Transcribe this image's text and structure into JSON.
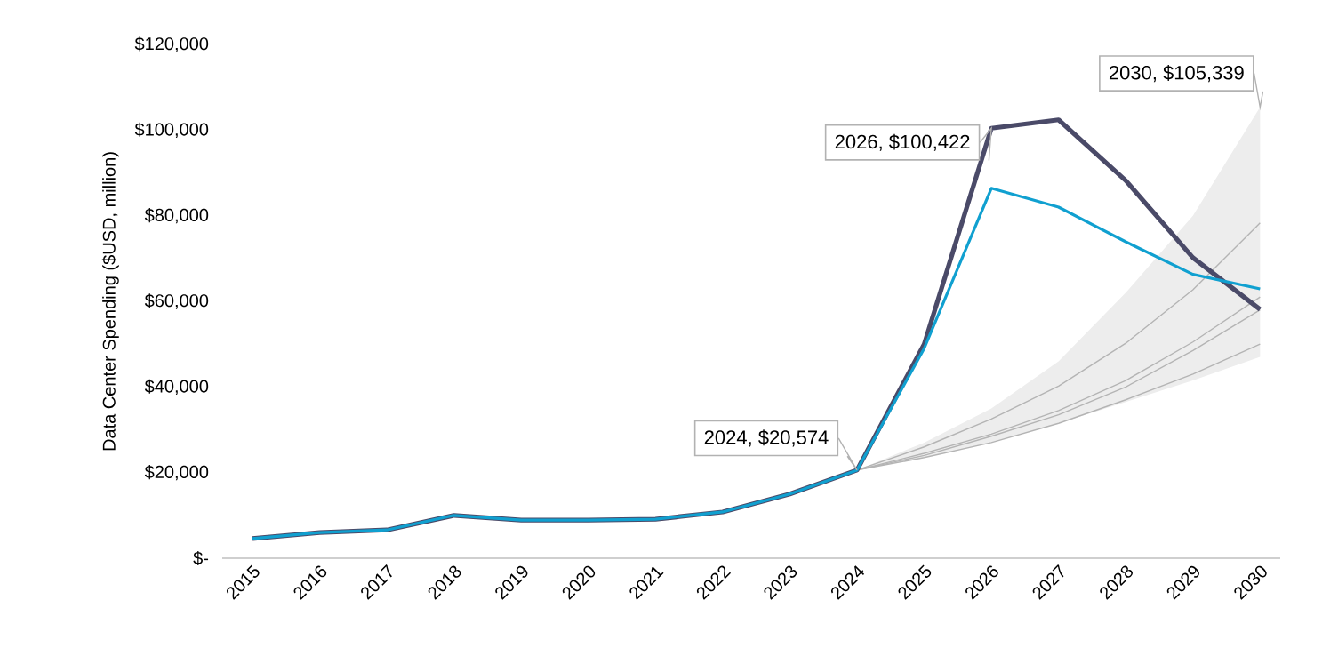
{
  "chart_data": {
    "type": "line",
    "ylabel": "Data Center Spending ($USD, million)",
    "categories": [
      "2015",
      "2016",
      "2017",
      "2018",
      "2019",
      "2020",
      "2021",
      "2022",
      "2023",
      "2024",
      "2025",
      "2026",
      "2027",
      "2028",
      "2029",
      "2030"
    ],
    "ylim": [
      0,
      120000
    ],
    "yticks": [
      {
        "value": 0,
        "label": "$-"
      },
      {
        "value": 20000,
        "label": "$20,000"
      },
      {
        "value": 40000,
        "label": "$40,000"
      },
      {
        "value": 60000,
        "label": "$60,000"
      },
      {
        "value": 80000,
        "label": "$80,000"
      },
      {
        "value": 100000,
        "label": "$100,000"
      },
      {
        "value": 120000,
        "label": "$120,000"
      }
    ],
    "series": [
      {
        "color": "#b4b4b4",
        "values": [
          null,
          null,
          null,
          null,
          null,
          null,
          null,
          null,
          null,
          20574,
          26000,
          32500,
          40200,
          50200,
          62700,
          78300
        ],
        "lower": [
          null,
          null,
          null,
          null,
          null,
          null,
          null,
          null,
          null,
          20574,
          23500,
          27000,
          31500,
          36500,
          41500,
          47000
        ],
        "upper": [
          null,
          null,
          null,
          null,
          null,
          null,
          null,
          null,
          null,
          20574,
          27000,
          35000,
          46000,
          62000,
          80000,
          105339
        ]
      },
      {
        "color": "#b4b4b4",
        "values": [
          null,
          null,
          null,
          null,
          null,
          null,
          null,
          null,
          null,
          20574,
          24500,
          29000,
          34500,
          41500,
          50500,
          61000
        ]
      },
      {
        "color": "#b4b4b4",
        "values": [
          null,
          null,
          null,
          null,
          null,
          null,
          null,
          null,
          null,
          20574,
          24000,
          28500,
          33500,
          40000,
          48500,
          58000
        ]
      },
      {
        "color": "#b4b4b4",
        "values": [
          null,
          null,
          null,
          null,
          null,
          null,
          null,
          null,
          null,
          20574,
          23500,
          27000,
          31500,
          37000,
          43000,
          50000
        ]
      },
      {
        "color": "#4a4a68",
        "values": [
          4600,
          6000,
          6600,
          10000,
          8900,
          8900,
          9100,
          10800,
          15000,
          20574,
          50000,
          100422,
          102400,
          88200,
          70200,
          58100
        ]
      },
      {
        "color": "#10a0d0",
        "values": [
          4600,
          6000,
          6600,
          10000,
          8900,
          8900,
          9100,
          10800,
          15000,
          20574,
          49000,
          86400,
          82000,
          73900,
          66300,
          62900
        ]
      }
    ],
    "annotations": [
      {
        "text": "2024, $20,574",
        "x": "2024",
        "y": 20574
      },
      {
        "text": "2026, $100,422",
        "x": "2026",
        "y": 100422
      },
      {
        "text": "2030, $105,339",
        "x": "2030",
        "y": 105339
      }
    ],
    "grid": false,
    "marker": "none",
    "line_style": "solid"
  }
}
